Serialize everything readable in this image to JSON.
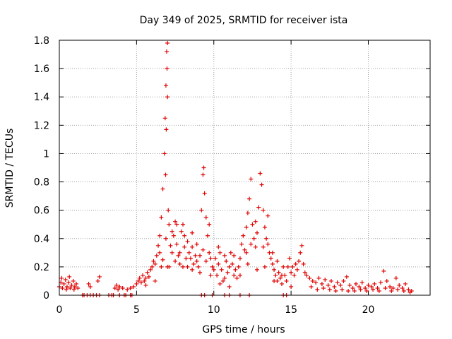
{
  "chart_data": {
    "type": "scatter",
    "title": "Day 349 of 2025, SRMTID for receiver ista",
    "xlabel": "GPS time / hours",
    "ylabel": "SRMTID / TECUs",
    "xlim": [
      0,
      24
    ],
    "ylim": [
      0,
      1.8
    ],
    "xticks": [
      0,
      5,
      10,
      15,
      20
    ],
    "xtick_labels": [
      "0",
      "5",
      "10",
      "15",
      "20"
    ],
    "yticks": [
      0,
      0.2,
      0.4,
      0.6,
      0.8,
      1.0,
      1.2,
      1.4,
      1.6,
      1.8
    ],
    "ytick_labels": [
      "0",
      "0.2",
      "0.4",
      "0.6",
      "0.8",
      "1",
      "1.2",
      "1.4",
      "1.6",
      "1.8"
    ],
    "grid": true,
    "marker": "+",
    "marker_color": "#e00000",
    "series": [
      {
        "name": "SRMTID",
        "points": [
          [
            0.0,
            0.06
          ],
          [
            0.1,
            0.09
          ],
          [
            0.2,
            0.05
          ],
          [
            0.3,
            0.08
          ],
          [
            0.4,
            0.11
          ],
          [
            0.5,
            0.06
          ],
          [
            0.6,
            0.09
          ],
          [
            0.7,
            0.05
          ],
          [
            0.8,
            0.07
          ],
          [
            0.9,
            0.1
          ],
          [
            1.0,
            0.06
          ],
          [
            1.1,
            0.08
          ],
          [
            1.2,
            0.05
          ],
          [
            0.15,
            0.12
          ],
          [
            0.45,
            0.04
          ],
          [
            0.65,
            0.13
          ],
          [
            0.95,
            0.04
          ],
          [
            1.5,
            0.0
          ],
          [
            1.6,
            0.0
          ],
          [
            1.8,
            0.0
          ],
          [
            2.0,
            0.0
          ],
          [
            2.2,
            0.0
          ],
          [
            2.4,
            0.0
          ],
          [
            2.6,
            0.0
          ],
          [
            3.2,
            0.0
          ],
          [
            3.4,
            0.0
          ],
          [
            3.5,
            0.0
          ],
          [
            3.9,
            0.0
          ],
          [
            4.2,
            0.0
          ],
          [
            4.3,
            0.0
          ],
          [
            4.6,
            0.0
          ],
          [
            4.7,
            0.0
          ],
          [
            1.9,
            0.08
          ],
          [
            2.0,
            0.06
          ],
          [
            2.5,
            0.1
          ],
          [
            2.6,
            0.13
          ],
          [
            3.6,
            0.05
          ],
          [
            3.7,
            0.07
          ],
          [
            3.8,
            0.04
          ],
          [
            3.9,
            0.06
          ],
          [
            4.1,
            0.05
          ],
          [
            4.4,
            0.04
          ],
          [
            4.6,
            0.05
          ],
          [
            4.8,
            0.06
          ],
          [
            5.0,
            0.08
          ],
          [
            5.1,
            0.1
          ],
          [
            5.2,
            0.12
          ],
          [
            5.3,
            0.09
          ],
          [
            5.4,
            0.14
          ],
          [
            5.5,
            0.1
          ],
          [
            5.6,
            0.12
          ],
          [
            5.7,
            0.16
          ],
          [
            5.8,
            0.13
          ],
          [
            5.9,
            0.18
          ],
          [
            6.0,
            0.2
          ],
          [
            6.1,
            0.24
          ],
          [
            6.2,
            0.22
          ],
          [
            6.3,
            0.28
          ],
          [
            6.4,
            0.35
          ],
          [
            6.5,
            0.42
          ],
          [
            6.6,
            0.55
          ],
          [
            6.7,
            0.75
          ],
          [
            6.8,
            1.0
          ],
          [
            6.85,
            1.25
          ],
          [
            6.9,
            1.48
          ],
          [
            6.95,
            1.72
          ],
          [
            7.0,
            1.78
          ],
          [
            6.97,
            1.6
          ],
          [
            7.0,
            1.4
          ],
          [
            6.92,
            1.17
          ],
          [
            6.88,
            0.85
          ],
          [
            7.05,
            0.6
          ],
          [
            7.1,
            0.5
          ],
          [
            7.2,
            0.35
          ],
          [
            7.3,
            0.3
          ],
          [
            7.4,
            0.42
          ],
          [
            7.5,
            0.52
          ],
          [
            7.6,
            0.36
          ],
          [
            7.7,
            0.28
          ],
          [
            7.8,
            0.3
          ],
          [
            7.9,
            0.45
          ],
          [
            8.0,
            0.5
          ],
          [
            8.1,
            0.34
          ],
          [
            8.2,
            0.26
          ],
          [
            8.3,
            0.38
          ],
          [
            8.4,
            0.3
          ],
          [
            8.5,
            0.26
          ],
          [
            8.6,
            0.34
          ],
          [
            8.7,
            0.22
          ],
          [
            8.8,
            0.28
          ],
          [
            8.9,
            0.36
          ],
          [
            9.0,
            0.2
          ],
          [
            9.1,
            0.28
          ],
          [
            9.2,
            0.6
          ],
          [
            9.3,
            0.85
          ],
          [
            9.35,
            0.9
          ],
          [
            9.4,
            0.72
          ],
          [
            9.5,
            0.55
          ],
          [
            9.6,
            0.42
          ],
          [
            9.7,
            0.3
          ],
          [
            9.8,
            0.26
          ],
          [
            9.9,
            0.2
          ],
          [
            10.0,
            0.18
          ],
          [
            10.1,
            0.26
          ],
          [
            10.2,
            0.14
          ],
          [
            10.3,
            0.22
          ],
          [
            10.4,
            0.3
          ],
          [
            10.5,
            0.18
          ],
          [
            10.6,
            0.1
          ],
          [
            10.7,
            0.28
          ],
          [
            10.8,
            0.24
          ],
          [
            10.9,
            0.16
          ],
          [
            11.0,
            0.2
          ],
          [
            11.1,
            0.3
          ],
          [
            11.2,
            0.22
          ],
          [
            11.3,
            0.14
          ],
          [
            11.4,
            0.18
          ],
          [
            11.5,
            0.12
          ],
          [
            11.6,
            0.2
          ],
          [
            11.7,
            0.26
          ],
          [
            11.8,
            0.36
          ],
          [
            11.9,
            0.42
          ],
          [
            12.0,
            0.32
          ],
          [
            12.1,
            0.48
          ],
          [
            12.2,
            0.58
          ],
          [
            12.3,
            0.68
          ],
          [
            12.4,
            0.82
          ],
          [
            12.5,
            0.5
          ],
          [
            12.6,
            0.4
          ],
          [
            12.7,
            0.34
          ],
          [
            12.8,
            0.44
          ],
          [
            12.9,
            0.62
          ],
          [
            13.0,
            0.86
          ],
          [
            13.1,
            0.78
          ],
          [
            13.2,
            0.6
          ],
          [
            13.3,
            0.48
          ],
          [
            13.4,
            0.4
          ],
          [
            13.5,
            0.36
          ],
          [
            13.6,
            0.3
          ],
          [
            13.7,
            0.26
          ],
          [
            13.8,
            0.22
          ],
          [
            13.9,
            0.18
          ],
          [
            14.0,
            0.14
          ],
          [
            14.1,
            0.1
          ],
          [
            14.2,
            0.16
          ],
          [
            14.3,
            0.12
          ],
          [
            14.4,
            0.08
          ],
          [
            14.5,
            0.2
          ],
          [
            14.6,
            0.14
          ],
          [
            14.7,
            0.1
          ],
          [
            14.8,
            0.2
          ],
          [
            14.9,
            0.26
          ],
          [
            15.0,
            0.16
          ],
          [
            15.1,
            0.2
          ],
          [
            15.2,
            0.14
          ],
          [
            15.3,
            0.22
          ],
          [
            15.4,
            0.18
          ],
          [
            15.5,
            0.24
          ],
          [
            15.6,
            0.3
          ],
          [
            15.7,
            0.35
          ],
          [
            15.8,
            0.22
          ],
          [
            15.9,
            0.16
          ],
          [
            16.0,
            0.14
          ],
          [
            6.5,
            0.3
          ],
          [
            6.7,
            0.25
          ],
          [
            6.9,
            0.4
          ],
          [
            7.1,
            0.2
          ],
          [
            7.3,
            0.45
          ],
          [
            7.6,
            0.5
          ],
          [
            7.8,
            0.22
          ],
          [
            8.1,
            0.42
          ],
          [
            8.3,
            0.2
          ],
          [
            8.6,
            0.44
          ],
          [
            8.9,
            0.24
          ],
          [
            9.3,
            0.32
          ],
          [
            9.5,
            0.24
          ],
          [
            9.7,
            0.5
          ],
          [
            10.3,
            0.34
          ],
          [
            10.7,
            0.12
          ],
          [
            11.3,
            0.28
          ],
          [
            12.1,
            0.3
          ],
          [
            12.4,
            0.36
          ],
          [
            12.7,
            0.52
          ],
          [
            13.2,
            0.34
          ],
          [
            13.5,
            0.56
          ],
          [
            13.8,
            0.3
          ],
          [
            14.1,
            0.24
          ],
          [
            5.6,
            0.07
          ],
          [
            6.2,
            0.1
          ],
          [
            6.6,
            0.2
          ],
          [
            7.0,
            0.2
          ],
          [
            7.5,
            0.24
          ],
          [
            8.0,
            0.2
          ],
          [
            8.6,
            0.18
          ],
          [
            9.1,
            0.16
          ],
          [
            9.8,
            0.14
          ],
          [
            10.4,
            0.08
          ],
          [
            11.0,
            0.06
          ],
          [
            11.7,
            0.14
          ],
          [
            12.2,
            0.22
          ],
          [
            12.8,
            0.18
          ],
          [
            13.3,
            0.2
          ],
          [
            13.9,
            0.1
          ],
          [
            14.4,
            0.14
          ],
          [
            15.0,
            0.06
          ],
          [
            9.2,
            0.0
          ],
          [
            9.4,
            0.0
          ],
          [
            9.9,
            0.0
          ],
          [
            10.7,
            0.0
          ],
          [
            11.0,
            0.0
          ],
          [
            11.7,
            0.0
          ],
          [
            12.3,
            0.0
          ],
          [
            14.5,
            0.0
          ],
          [
            14.7,
            0.0
          ],
          [
            16.2,
            0.12
          ],
          [
            16.4,
            0.1
          ],
          [
            16.6,
            0.09
          ],
          [
            16.8,
            0.12
          ],
          [
            17.0,
            0.08
          ],
          [
            17.2,
            0.11
          ],
          [
            17.4,
            0.07
          ],
          [
            17.6,
            0.1
          ],
          [
            17.8,
            0.06
          ],
          [
            18.0,
            0.09
          ],
          [
            18.2,
            0.07
          ],
          [
            18.4,
            0.1
          ],
          [
            18.6,
            0.13
          ],
          [
            18.8,
            0.07
          ],
          [
            19.0,
            0.05
          ],
          [
            19.2,
            0.08
          ],
          [
            19.4,
            0.06
          ],
          [
            19.6,
            0.09
          ],
          [
            19.8,
            0.05
          ],
          [
            20.0,
            0.07
          ],
          [
            20.2,
            0.06
          ],
          [
            20.4,
            0.08
          ],
          [
            20.6,
            0.05
          ],
          [
            20.8,
            0.09
          ],
          [
            21.0,
            0.17
          ],
          [
            21.2,
            0.1
          ],
          [
            21.4,
            0.06
          ],
          [
            21.6,
            0.05
          ],
          [
            21.8,
            0.12
          ],
          [
            22.0,
            0.07
          ],
          [
            22.2,
            0.05
          ],
          [
            22.4,
            0.08
          ],
          [
            22.6,
            0.04
          ],
          [
            22.8,
            0.03
          ],
          [
            16.3,
            0.06
          ],
          [
            16.7,
            0.04
          ],
          [
            17.1,
            0.05
          ],
          [
            17.5,
            0.04
          ],
          [
            17.9,
            0.03
          ],
          [
            18.3,
            0.04
          ],
          [
            18.7,
            0.03
          ],
          [
            19.1,
            0.03
          ],
          [
            19.5,
            0.04
          ],
          [
            19.9,
            0.03
          ],
          [
            20.3,
            0.04
          ],
          [
            20.7,
            0.03
          ],
          [
            21.1,
            0.05
          ],
          [
            21.5,
            0.03
          ],
          [
            21.9,
            0.04
          ],
          [
            22.3,
            0.03
          ],
          [
            22.7,
            0.02
          ]
        ]
      }
    ]
  }
}
